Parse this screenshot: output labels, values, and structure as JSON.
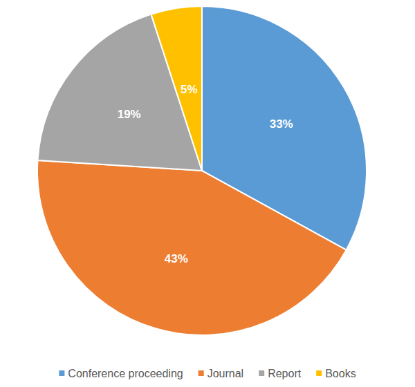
{
  "chart_data": {
    "type": "pie",
    "categories": [
      "Conference proceeding",
      "Journal",
      "Report",
      "Books"
    ],
    "values": [
      33,
      43,
      19,
      5
    ],
    "value_labels": [
      "33%",
      "43%",
      "19%",
      "5%"
    ],
    "colors": [
      "#5b9bd5",
      "#ed7d31",
      "#a5a5a5",
      "#ffc000"
    ],
    "data_labels": true,
    "legend": "bottom"
  }
}
